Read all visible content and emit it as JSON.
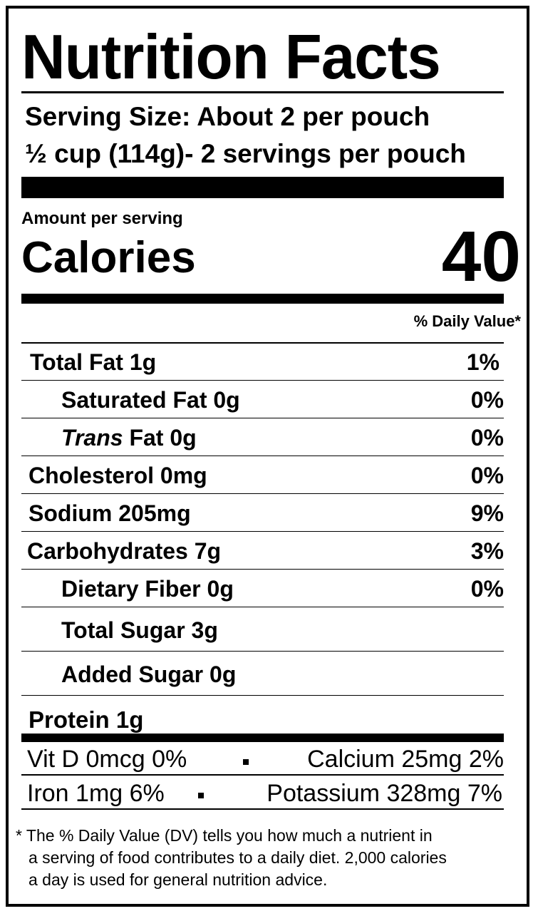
{
  "title": "Nutrition Facts",
  "serving": {
    "line1": "Serving Size: About 2 per pouch",
    "line2": "½ cup (114g)- 2 servings per pouch"
  },
  "amount_per_serving": "Amount per serving",
  "calories": {
    "label": "Calories",
    "value": "40"
  },
  "daily_value_header": "% Daily Value*",
  "nutrients": [
    {
      "label": "Total Fat",
      "amount": "1g",
      "dv": "1%"
    },
    {
      "label": "Saturated Fat",
      "amount": "0g",
      "dv": "0%"
    },
    {
      "label_italic": "Trans",
      "label": "Fat",
      "amount": "0g",
      "dv": "0%"
    },
    {
      "label": "Cholesterol",
      "amount": "0mg",
      "dv": "0%"
    },
    {
      "label": "Sodium",
      "amount": "205mg",
      "dv": "9%"
    },
    {
      "label": "Carbohydrates",
      "amount": "7g",
      "dv": "3%"
    },
    {
      "label": "Dietary Fiber",
      "amount": "0g",
      "dv": "0%"
    },
    {
      "label": "Total Sugar",
      "amount": "3g",
      "dv": ""
    },
    {
      "label": "Added Sugar",
      "amount": "0g",
      "dv": ""
    },
    {
      "label": "Protein",
      "amount": "1g",
      "dv": ""
    }
  ],
  "minerals": {
    "row1_left": "Vit D  0mcg 0%",
    "row1_right": "Calcium  25mg 2%",
    "row2_left": "Iron 1mg 6%",
    "row2_right": "Potassium  328mg  7%"
  },
  "footnote": {
    "line1": "* The % Daily Value (DV) tells you how much a nutrient in",
    "line2": "a serving of food contributes to a daily diet. 2,000 calories",
    "line3": "a day is used for general nutrition advice."
  }
}
